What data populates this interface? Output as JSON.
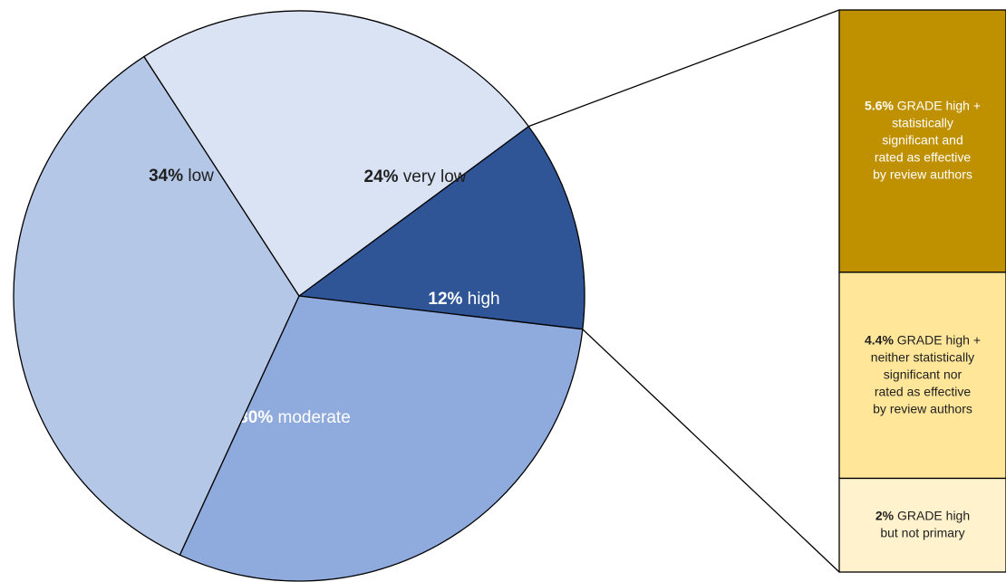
{
  "chart_data": {
    "type": "pie",
    "title": "",
    "slices": [
      {
        "pct": "12%",
        "label": "high",
        "value": 12,
        "color": "#2f5597",
        "text_color": "#ffffff"
      },
      {
        "pct": "30%",
        "label": "moderate",
        "value": 30,
        "color": "#8faadc",
        "text_color": "#ffffff"
      },
      {
        "pct": "34%",
        "label": "low",
        "value": 34,
        "color": "#b4c7e7",
        "text_color": "#1f1f1f"
      },
      {
        "pct": "24%",
        "label": "very low",
        "value": 24,
        "color": "#dae3f3",
        "text_color": "#1f1f1f"
      }
    ],
    "breakdown": {
      "of_slice": "high",
      "segments": [
        {
          "value": 5.6,
          "pct": "5.6%",
          "lines": [
            "GRADE high +",
            "statistically",
            "significant and",
            "rated as effective",
            "by review authors"
          ],
          "color": "#bf9000",
          "text_color": "#ffffff"
        },
        {
          "value": 4.4,
          "pct": "4.4%",
          "lines": [
            "GRADE high +",
            "neither statistically",
            "significant nor",
            "rated as effective",
            "by review authors"
          ],
          "color": "#ffe699",
          "text_color": "#1f1f1f"
        },
        {
          "value": 2,
          "pct": "2%",
          "lines": [
            "GRADE high",
            "but not primary"
          ],
          "color": "#fff2cc",
          "text_color": "#1f1f1f"
        }
      ]
    }
  }
}
